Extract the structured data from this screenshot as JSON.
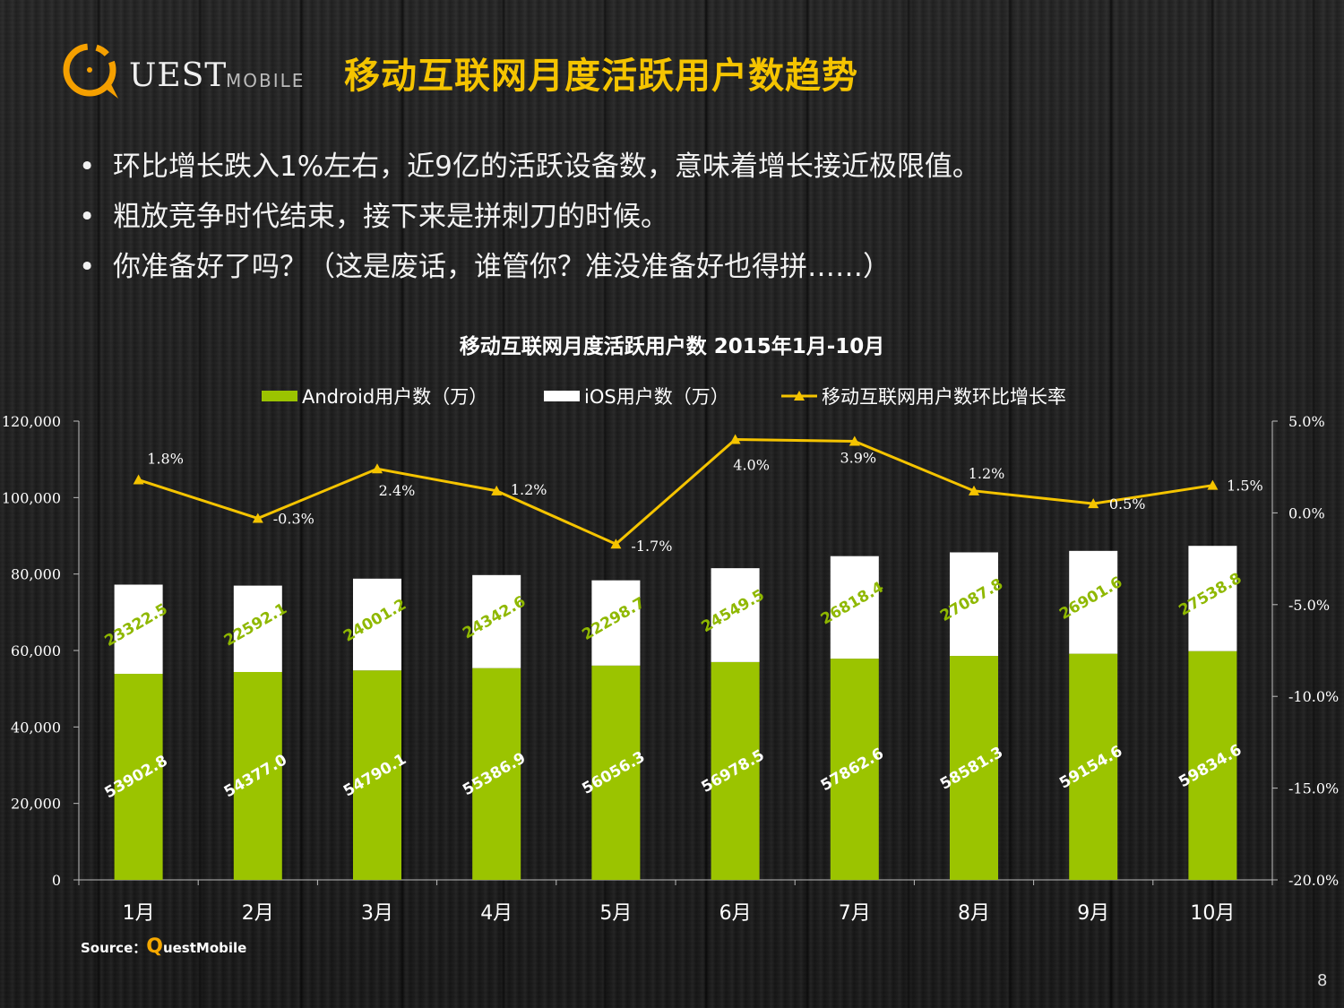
{
  "header": {
    "logo_text": "UEST",
    "logo_sub": "MOBILE",
    "title": "移动互联网月度活跃用户数趋势"
  },
  "bullets": [
    "环比增长跌入1%左右，近9亿的活跃设备数，意味着增长接近极限值。",
    "粗放竞争时代结束，接下来是拼刺刀的时候。",
    "你准备好了吗？（这是废话，谁管你？准没准备好也得拼……）"
  ],
  "chart_data": {
    "type": "bar",
    "title": "移动互联网月度活跃用户数  2015年1月-10月",
    "categories": [
      "1月",
      "2月",
      "3月",
      "4月",
      "5月",
      "6月",
      "7月",
      "8月",
      "9月",
      "10月"
    ],
    "series": [
      {
        "name": "Android用户数（万）",
        "type": "bar",
        "stack": "users",
        "color": "#9bc400",
        "values": [
          53902.8,
          54377.0,
          54790.1,
          55386.9,
          56056.3,
          56978.5,
          57862.6,
          58581.3,
          59154.6,
          59834.6
        ],
        "labels": [
          "53902.8",
          "54377.0",
          "54790.1",
          "55386.9",
          "56056.3",
          "56978.5",
          "57862.6",
          "58581.3",
          "59154.6",
          "59834.6"
        ]
      },
      {
        "name": "iOS用户数（万）",
        "type": "bar",
        "stack": "users",
        "color": "#ffffff",
        "values": [
          23322.5,
          22592.1,
          24001.2,
          24342.6,
          22298.7,
          24549.5,
          26818.4,
          27087.8,
          26901.6,
          27538.8
        ],
        "labels": [
          "23322.5",
          "22592.1",
          "24001.2",
          "24342.6",
          "22298.7",
          "24549.5",
          "26818.4",
          "27087.8",
          "26901.6",
          "27538.8"
        ]
      },
      {
        "name": "移动互联网用户数环比增长率",
        "type": "line",
        "axis": "right",
        "color": "#f5c400",
        "values": [
          1.8,
          -0.3,
          2.4,
          1.2,
          -1.7,
          4.0,
          3.9,
          1.2,
          0.5,
          1.5
        ],
        "labels": [
          "1.8%",
          "-0.3%",
          "2.4%",
          "1.2%",
          "-1.7%",
          "4.0%",
          "3.9%",
          "1.2%",
          "0.5%",
          "1.5%"
        ]
      }
    ],
    "y_left": {
      "ylim": [
        0,
        120000
      ],
      "ticks": [
        "0",
        "20,000",
        "40,000",
        "60,000",
        "80,000",
        "100,000",
        "120,000"
      ]
    },
    "y_right": {
      "ylim": [
        -20,
        5
      ],
      "ticks": [
        "-20.0%",
        "-15.0%",
        "-10.0%",
        "-5.0%",
        "0.0%",
        "5.0%"
      ]
    },
    "grid": false,
    "legend": "top"
  },
  "source": {
    "prefix": "Source：",
    "q": "Q",
    "name": "uestMobile"
  },
  "page_number": "8"
}
